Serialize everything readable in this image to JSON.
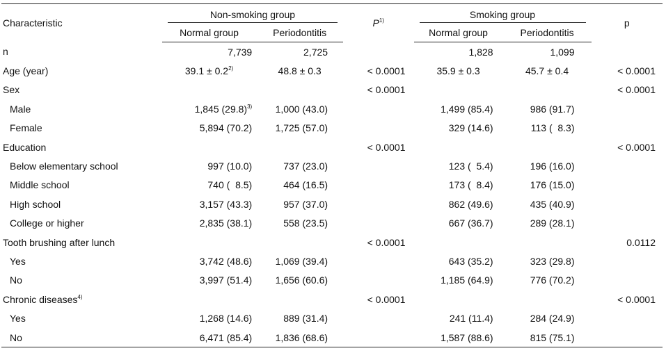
{
  "header": {
    "characteristic": "Characteristic",
    "non_smoking_group": "Non-smoking group",
    "smoking_group": "Smoking group",
    "p1_label": "P",
    "p1_note": "1)",
    "p2_label": "p",
    "normal_group_1": "Normal group",
    "periodontitis_1": "Periodontitis",
    "normal_group_2": "Normal group",
    "periodontitis_2": "Periodontitis"
  },
  "rows": [
    {
      "label": "n",
      "a": "7,739",
      "b": "2,725",
      "p": "",
      "c": "1,828",
      "d": "1,099",
      "q": ""
    },
    {
      "label": "Age (year)",
      "a": "39.1 ± 0.2",
      "a_sup": "2)",
      "b": "48.8 ± 0.3",
      "p": "< 0.0001",
      "c": "35.9 ± 0.3",
      "d": "45.7 ± 0.4",
      "q": "< 0.0001"
    },
    {
      "label": "Sex",
      "a": "",
      "b": "",
      "p": "< 0.0001",
      "c": "",
      "d": "",
      "q": "< 0.0001"
    },
    {
      "label": "Male",
      "a": "1,845 (29.8)",
      "a_sup": "3)",
      "b": "1,000 (43.0)",
      "p": "",
      "c": "1,499 (85.4)",
      "d": "986 (91.7)",
      "q": ""
    },
    {
      "label": "Female",
      "a": "5,894 (70.2)",
      "b": "1,725 (57.0)",
      "p": "",
      "c": "329 (14.6)",
      "d": "113 (  8.3)",
      "q": ""
    },
    {
      "label": "Education",
      "a": "",
      "b": "",
      "p": "< 0.0001",
      "c": "",
      "d": "",
      "q": "< 0.0001"
    },
    {
      "label": "Below elementary school",
      "a": "997 (10.0)",
      "b": "737 (23.0)",
      "p": "",
      "c": "123 (  5.4)",
      "d": "196 (16.0)",
      "q": ""
    },
    {
      "label": "Middle school",
      "a": "740 (  8.5)",
      "b": "464 (16.5)",
      "p": "",
      "c": "173 (  8.4)",
      "d": "176 (15.0)",
      "q": ""
    },
    {
      "label": "High school",
      "a": "3,157 (43.3)",
      "b": "957 (37.0)",
      "p": "",
      "c": "862 (49.6)",
      "d": "435 (40.9)",
      "q": ""
    },
    {
      "label": "College or higher",
      "a": "2,835 (38.1)",
      "b": "558 (23.5)",
      "p": "",
      "c": "667 (36.7)",
      "d": "289 (28.1)",
      "q": ""
    },
    {
      "label": "Tooth brushing after lunch",
      "a": "",
      "b": "",
      "p": "< 0.0001",
      "c": "",
      "d": "",
      "q": "0.0112"
    },
    {
      "label": "Yes",
      "a": "3,742 (48.6)",
      "b": "1,069 (39.4)",
      "p": "",
      "c": "643 (35.2)",
      "d": "323 (29.8)",
      "q": ""
    },
    {
      "label": "No",
      "a": "3,997 (51.4)",
      "b": "1,656 (60.6)",
      "p": "",
      "c": "1,185 (64.9)",
      "d": "776 (70.2)",
      "q": ""
    },
    {
      "label": "Chronic diseases",
      "label_sup": "4)",
      "a": "",
      "b": "",
      "p": "< 0.0001",
      "c": "",
      "d": "",
      "q": "< 0.0001"
    },
    {
      "label": "Yes",
      "a": "1,268 (14.6)",
      "b": "889 (31.4)",
      "p": "",
      "c": "241 (11.4)",
      "d": "284 (24.9)",
      "q": ""
    },
    {
      "label": "No",
      "a": "6,471 (85.4)",
      "b": "1,836 (68.6)",
      "p": "",
      "c": "1,587 (88.6)",
      "d": "815 (75.1)",
      "q": ""
    }
  ]
}
